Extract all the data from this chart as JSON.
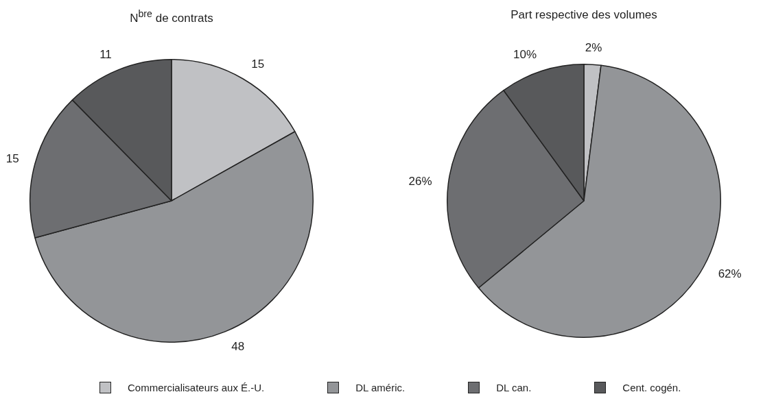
{
  "chart_data": [
    {
      "type": "pie",
      "title": "N$^{bre}$ de contrats",
      "categories": [
        "Commercialisateurs aux É.-U.",
        "DL améric.",
        "DL can.",
        "Cent. cogén."
      ],
      "values": [
        15,
        48,
        15,
        11
      ],
      "colors": [
        "#c0c1c4",
        "#939598",
        "#6d6e71",
        "#58595b"
      ],
      "value_labels": [
        "15",
        "48",
        "15",
        "11"
      ],
      "legend": "bottom"
    },
    {
      "type": "pie",
      "title": "Part respective des volumes",
      "categories": [
        null,
        null,
        null,
        null
      ],
      "values": [
        2,
        62,
        26,
        10
      ],
      "colors": [
        "#c0c1c4",
        "#939598",
        "#6d6e71",
        "#58595b"
      ],
      "value_labels": [
        "2%",
        "62%",
        "26%",
        "10%"
      ]
    }
  ]
}
